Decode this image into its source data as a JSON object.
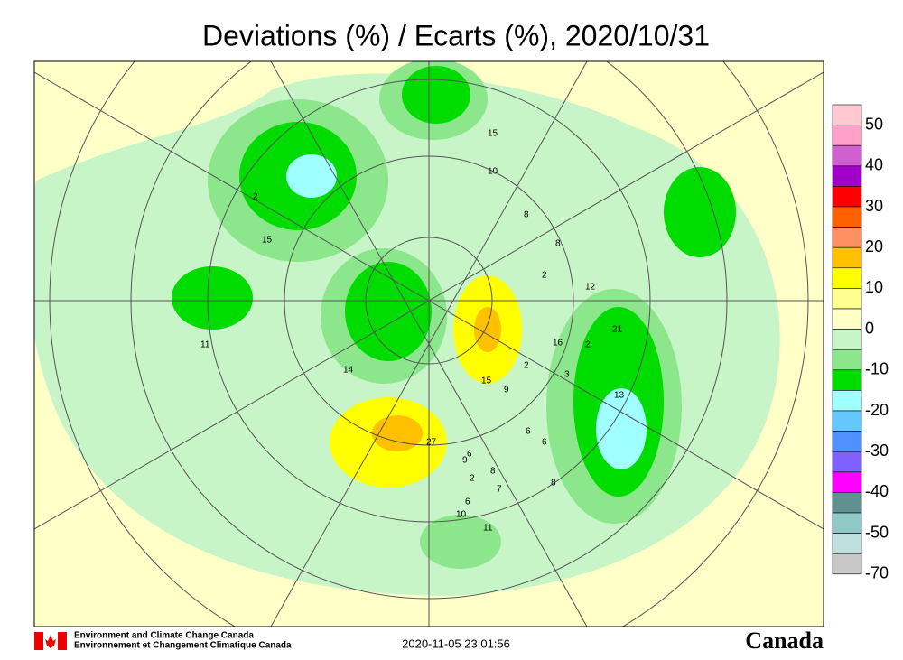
{
  "title": "Deviations (%) / Ecarts (%), 2020/10/31",
  "colorbar": {
    "colors": [
      "#ffc8d2",
      "#ffa0c8",
      "#d060d0",
      "#a000c8",
      "#ff0000",
      "#ff6000",
      "#ff9060",
      "#ffc000",
      "#ffff00",
      "#ffff90",
      "#ffffc8",
      "#c8f5c8",
      "#8ce68c",
      "#00dc00",
      "#a0ffff",
      "#64c8ff",
      "#5090ff",
      "#8060ff",
      "#ff00ff",
      "#609090",
      "#90c8c8",
      "#c0e0e0",
      "#c8c8c8"
    ],
    "labels": [
      50,
      40,
      30,
      20,
      10,
      0,
      -10,
      -20,
      -30,
      -40,
      -50,
      -70
    ]
  },
  "stations": [
    "15",
    "10",
    "8",
    "8",
    "2",
    "12",
    "16",
    "21",
    "2",
    "3",
    "13",
    "2",
    "15",
    "9",
    "6",
    "14",
    "11",
    "15",
    "27",
    "6",
    "6",
    "9",
    "8",
    "7",
    "2",
    "6",
    "10",
    "11",
    "8",
    "2"
  ],
  "footer": {
    "agency_en": "Environment and Climate Change Canada",
    "agency_fr": "Environnement et Changement Climatique Canada",
    "timestamp": "2020-11-05 23:01:56",
    "wordmark": "Canada"
  }
}
